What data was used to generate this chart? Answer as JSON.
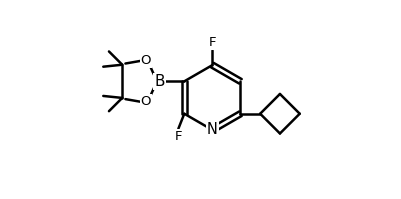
{
  "background_color": "#ffffff",
  "line_color": "#000000",
  "line_width": 1.8,
  "text_color": "#000000",
  "font_size": 9.5,
  "figsize": [
    4.01,
    1.99
  ],
  "dpi": 100,
  "xlim": [
    0,
    10
  ],
  "ylim": [
    0,
    5
  ]
}
